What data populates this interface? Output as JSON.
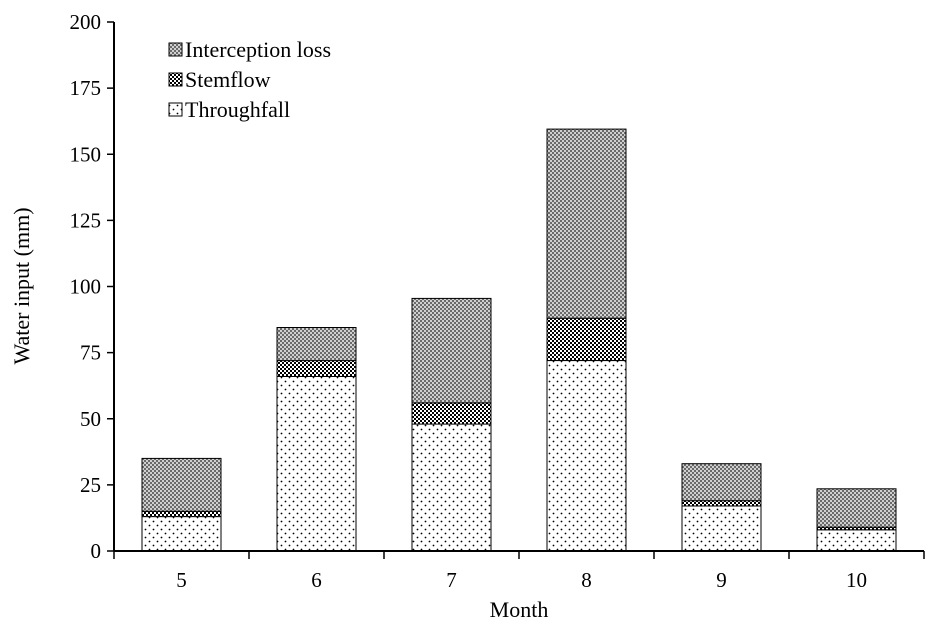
{
  "chart_data": {
    "type": "bar",
    "stacked": true,
    "categories": [
      "5",
      "6",
      "7",
      "8",
      "9",
      "10"
    ],
    "series": [
      {
        "name": "Throughfall",
        "values": [
          13,
          66,
          48,
          72,
          17,
          8
        ],
        "pattern": "dots"
      },
      {
        "name": "Stemflow",
        "values": [
          2,
          6,
          8,
          16,
          2,
          1
        ],
        "pattern": "checker-dark"
      },
      {
        "name": "Interception loss",
        "values": [
          20,
          12.5,
          39.5,
          71.5,
          14,
          14.5
        ],
        "pattern": "checker-light"
      }
    ],
    "legend_order": [
      "Interception loss",
      "Stemflow",
      "Throughfall"
    ],
    "legend_position": "top-left",
    "title": "",
    "xlabel": "Month",
    "ylabel": "Water input (mm)",
    "ylim": [
      0,
      200
    ],
    "yticks": [
      0,
      25,
      50,
      75,
      100,
      125,
      150,
      175,
      200
    ],
    "grid": false,
    "colors": {
      "outline": "#000000",
      "background": "#ffffff"
    }
  }
}
